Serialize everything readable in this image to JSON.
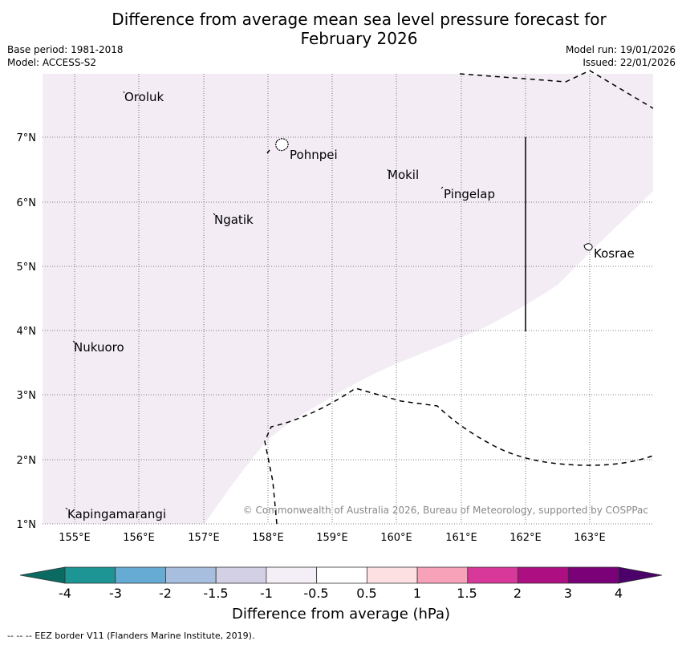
{
  "title_line1": "Difference from average mean sea level pressure forecast for",
  "title_line2": "February 2026",
  "base_period": "Base period: 1981-2018",
  "model": "Model: ACCESS-S2",
  "model_run": "Model run: 19/01/2026",
  "issued": "Issued: 22/01/2026",
  "copyright": "© Commonwealth of Australia 2026, Bureau of Meteorology, supported by COSPPac",
  "footer": "--  --  -- EEZ border V11 (Flanders Marine Institute, 2019).",
  "colorbar_title": "Difference from average (hPa)",
  "lon_labels": [
    "155°E",
    "156°E",
    "157°E",
    "158°E",
    "159°E",
    "160°E",
    "161°E",
    "162°E",
    "163°E"
  ],
  "lat_labels": [
    "7°N",
    "6°N",
    "5°N",
    "4°N",
    "3°N",
    "2°N",
    "1°N"
  ],
  "places": [
    "Oroluk",
    "Pohnpei",
    "Mokil",
    "Pingelap",
    "Ngatik",
    "Kosrae",
    "Nukuoro",
    "Kapingamarangi"
  ],
  "colorbar_ticks": [
    "-4",
    "-3",
    "-2",
    "-1.5",
    "-1",
    "-0.5",
    "0.5",
    "1",
    "1.5",
    "2",
    "3",
    "4"
  ],
  "colors": {
    "anomaly_fill": "#f3ecf5",
    "cb_under": "#0b6b62",
    "cb_bins": [
      "#1c9594",
      "#66abd3",
      "#a7bedf",
      "#d3d0e6",
      "#f4eef7",
      "#ffffff",
      "#fde1e2",
      "#f7a2b8",
      "#d8389a",
      "#ad0f82",
      "#7a0178"
    ],
    "cb_over": "#4b006a"
  }
}
